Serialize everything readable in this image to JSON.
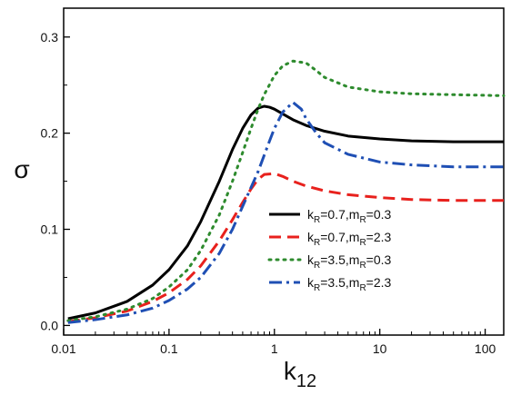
{
  "chart_data": {
    "type": "line",
    "xlabel": "k",
    "xlabel_sub": "12",
    "ylabel": "σ",
    "xscale": "log",
    "xlim": [
      0.01,
      150
    ],
    "ylim": [
      -0.01,
      0.33
    ],
    "xticks": [
      {
        "value": 0.01,
        "label": "0.01"
      },
      {
        "value": 0.1,
        "label": "0.1"
      },
      {
        "value": 1,
        "label": "1"
      },
      {
        "value": 10,
        "label": "10"
      },
      {
        "value": 100,
        "label": "100"
      }
    ],
    "yticks": [
      {
        "value": 0.0,
        "label": "0.0"
      },
      {
        "value": 0.1,
        "label": "0.1"
      },
      {
        "value": 0.2,
        "label": "0.2"
      },
      {
        "value": 0.3,
        "label": "0.3"
      }
    ],
    "grid": false,
    "legend_position": "right",
    "series": [
      {
        "name": "kR=0.7,mR=0.3",
        "label_parts": {
          "k_sub": "R",
          "k_val": "=0.7,",
          "m_sub": "R",
          "m_val": "=0.3"
        },
        "color": "#000000",
        "style": "solid",
        "x": [
          0.011,
          0.02,
          0.04,
          0.07,
          0.1,
          0.15,
          0.2,
          0.3,
          0.4,
          0.5,
          0.6,
          0.7,
          0.8,
          0.9,
          1.0,
          1.2,
          1.5,
          2,
          3,
          5,
          10,
          20,
          50,
          150
        ],
        "y": [
          0.007,
          0.013,
          0.025,
          0.042,
          0.058,
          0.083,
          0.108,
          0.15,
          0.183,
          0.205,
          0.219,
          0.226,
          0.228,
          0.227,
          0.225,
          0.22,
          0.214,
          0.208,
          0.202,
          0.197,
          0.194,
          0.192,
          0.191,
          0.191
        ]
      },
      {
        "name": "kR=0.7,mR=2.3",
        "label_parts": {
          "k_sub": "R",
          "k_val": "=0.7,",
          "m_sub": "R",
          "m_val": "=2.3"
        },
        "color": "#e8211d",
        "style": "dash",
        "x": [
          0.011,
          0.02,
          0.04,
          0.07,
          0.1,
          0.15,
          0.2,
          0.3,
          0.4,
          0.5,
          0.6,
          0.7,
          0.8,
          1.0,
          1.2,
          1.5,
          2,
          3,
          5,
          10,
          20,
          50,
          150
        ],
        "y": [
          0.004,
          0.008,
          0.015,
          0.025,
          0.034,
          0.048,
          0.062,
          0.088,
          0.11,
          0.128,
          0.142,
          0.152,
          0.157,
          0.158,
          0.155,
          0.15,
          0.145,
          0.14,
          0.136,
          0.133,
          0.131,
          0.13,
          0.13
        ]
      },
      {
        "name": "kR=3.5,mR=0.3",
        "label_parts": {
          "k_sub": "R",
          "k_val": "=3.5,",
          "m_sub": "R",
          "m_val": "=0.3"
        },
        "color": "#2e8b2e",
        "style": "dot",
        "x": [
          0.011,
          0.02,
          0.04,
          0.07,
          0.1,
          0.15,
          0.2,
          0.3,
          0.4,
          0.5,
          0.6,
          0.7,
          0.8,
          1.0,
          1.2,
          1.5,
          2,
          2.5,
          3,
          5,
          10,
          20,
          50,
          150
        ],
        "y": [
          0.005,
          0.009,
          0.017,
          0.028,
          0.04,
          0.058,
          0.078,
          0.115,
          0.15,
          0.18,
          0.205,
          0.225,
          0.24,
          0.26,
          0.27,
          0.275,
          0.273,
          0.265,
          0.258,
          0.248,
          0.243,
          0.241,
          0.24,
          0.239
        ]
      },
      {
        "name": "kR=3.5,mR=2.3",
        "label_parts": {
          "k_sub": "R",
          "k_val": "=3.5,",
          "m_sub": "R",
          "m_val": "=2.3"
        },
        "color": "#1f4fb4",
        "style": "dashdot",
        "x": [
          0.011,
          0.02,
          0.04,
          0.07,
          0.1,
          0.15,
          0.2,
          0.3,
          0.4,
          0.5,
          0.7,
          0.9,
          1.0,
          1.2,
          1.5,
          1.8,
          2,
          2.5,
          3,
          5,
          10,
          20,
          50,
          150
        ],
        "y": [
          0.003,
          0.006,
          0.011,
          0.018,
          0.026,
          0.038,
          0.05,
          0.075,
          0.1,
          0.124,
          0.16,
          0.192,
          0.205,
          0.222,
          0.232,
          0.225,
          0.215,
          0.2,
          0.19,
          0.178,
          0.17,
          0.167,
          0.165,
          0.165
        ]
      }
    ]
  }
}
